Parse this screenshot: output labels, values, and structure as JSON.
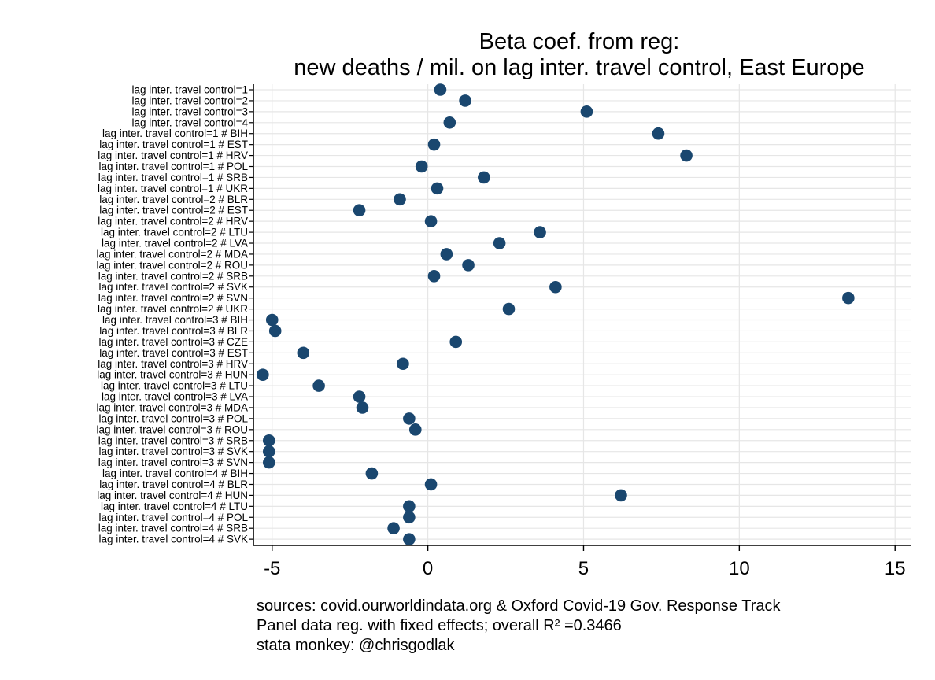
{
  "chart_data": {
    "type": "scatter",
    "orientation": "horizontal",
    "title": "Beta coef. from reg:",
    "subtitle": "new deaths / mil. on lag inter. travel control, East Europe",
    "xlabel": "",
    "ylabel": "",
    "xlim": [
      -5.6,
      15.5
    ],
    "xticks": [
      -5,
      0,
      5,
      10,
      15
    ],
    "xtick_labels": [
      "-5",
      "0",
      "5",
      "10",
      "15"
    ],
    "grid": true,
    "marker_color": "#1a476f",
    "categories": [
      "lag inter. travel control=1",
      "lag inter. travel control=2",
      "lag inter. travel control=3",
      "lag inter. travel control=4",
      "lag inter. travel control=1 # BIH",
      "lag inter. travel control=1 # EST",
      "lag inter. travel control=1 # HRV",
      "lag inter. travel control=1 # POL",
      "lag inter. travel control=1 # SRB",
      "lag inter. travel control=1 # UKR",
      "lag inter. travel control=2 # BLR",
      "lag inter. travel control=2 # EST",
      "lag inter. travel control=2 # HRV",
      "lag inter. travel control=2 # LTU",
      "lag inter. travel control=2 # LVA",
      "lag inter. travel control=2 # MDA",
      "lag inter. travel control=2 # ROU",
      "lag inter. travel control=2 # SRB",
      "lag inter. travel control=2 # SVK",
      "lag inter. travel control=2 # SVN",
      "lag inter. travel control=2 # UKR",
      "lag inter. travel control=3 # BIH",
      "lag inter. travel control=3 # BLR",
      "lag inter. travel control=3 # CZE",
      "lag inter. travel control=3 # EST",
      "lag inter. travel control=3 # HRV",
      "lag inter. travel control=3 # HUN",
      "lag inter. travel control=3 # LTU",
      "lag inter. travel control=3 # LVA",
      "lag inter. travel control=3 # MDA",
      "lag inter. travel control=3 # POL",
      "lag inter. travel control=3 # ROU",
      "lag inter. travel control=3 # SRB",
      "lag inter. travel control=3 # SVK",
      "lag inter. travel control=3 # SVN",
      "lag inter. travel control=4 # BIH",
      "lag inter. travel control=4 # BLR",
      "lag inter. travel control=4 # HUN",
      "lag inter. travel control=4 # LTU",
      "lag inter. travel control=4 # POL",
      "lag inter. travel control=4 # SRB",
      "lag inter. travel control=4 # SVK"
    ],
    "values": [
      0.4,
      1.2,
      5.1,
      0.7,
      7.4,
      0.2,
      8.3,
      -0.2,
      1.8,
      0.3,
      -0.9,
      -2.2,
      0.1,
      3.6,
      2.3,
      0.6,
      1.3,
      0.2,
      4.1,
      13.5,
      2.6,
      -5.0,
      -4.9,
      0.9,
      -4.0,
      -0.8,
      -5.3,
      -3.5,
      -2.2,
      -2.1,
      -0.6,
      -0.4,
      -5.1,
      -5.1,
      -5.1,
      -1.8,
      0.1,
      6.2,
      -0.6,
      -0.6,
      -1.1,
      -0.6
    ]
  },
  "notes": [
    "sources: covid.ourworldindata.org & Oxford Covid-19 Gov. Response Track",
    "Panel data reg. with fixed effects; overall R² =0.3466",
    "stata monkey: @chrisgodlak"
  ]
}
